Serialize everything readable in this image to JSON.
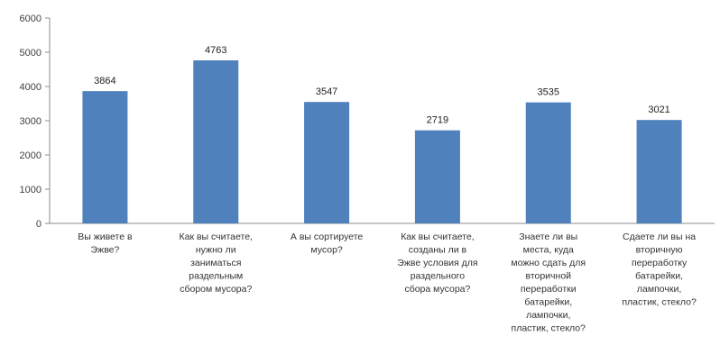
{
  "chart_data": {
    "type": "bar",
    "title": "",
    "xlabel": "",
    "ylabel": "",
    "ylim": [
      0,
      6000
    ],
    "yticks": [
      0,
      1000,
      2000,
      3000,
      4000,
      5000,
      6000
    ],
    "grid": false,
    "legend": "none",
    "bar_color": "#4f81bd",
    "categories": [
      [
        "Вы живете в",
        "Эжве?"
      ],
      [
        "Как вы считаете,",
        "нужно ли",
        "заниматься",
        "раздельным",
        "сбором мусора?"
      ],
      [
        "А вы сортируете",
        "мусор?"
      ],
      [
        "Как вы считаете,",
        "созданы ли в",
        "Эжве условия для",
        "раздельного",
        "сбора мусора?"
      ],
      [
        "Знаете ли вы",
        "места, куда",
        "можно сдать для",
        "вторичной",
        "переработки",
        "батарейки,",
        "лампочки,",
        "пластик, стекло?"
      ],
      [
        "Сдаете ли вы на",
        "вторичную",
        "переработку",
        "батарейки,",
        "лампочки,",
        "пластик, стекло?"
      ]
    ],
    "values": [
      3864,
      4763,
      3547,
      2719,
      3535,
      3021
    ]
  }
}
